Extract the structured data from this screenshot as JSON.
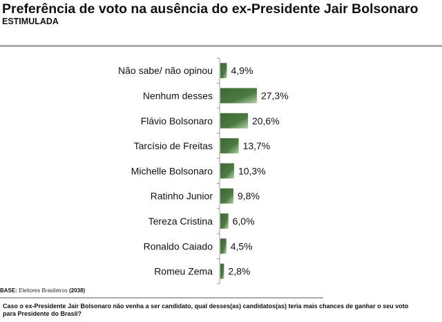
{
  "header": {
    "title": "Preferência de voto na ausência do ex-Presidente Jair Bolsonaro",
    "subtitle": "ESTIMULADA"
  },
  "footer": {
    "base_label": "BASE:",
    "base_text": "Eleitores Brasileiros",
    "base_n": "(2038)",
    "question": "Caso o ex-Presidente Jair Bolsonaro não venha a ser candidato, qual desses(as) candidatos(as) teria mais chances de ganhar o seu voto para Presidente do Brasil?"
  },
  "colors": {
    "bar_dark": "#3f6b35",
    "bar_light": "#a8c49c"
  },
  "chart_data": {
    "type": "bar",
    "orientation": "horizontal",
    "categories": [
      "Não sabe/ não opinou",
      "Nenhum desses",
      "Flávio Bolsonaro",
      "Tarcísio de Freitas",
      "Michelle Bolsonaro",
      "Ratinho Junior",
      "Tereza Cristina",
      "Ronaldo Caiado",
      "Romeu Zema"
    ],
    "values": [
      4.9,
      27.3,
      20.6,
      13.7,
      10.3,
      9.8,
      6.0,
      4.5,
      2.8
    ],
    "labels": [
      "4,9%",
      "27,3%",
      "20,6%",
      "13,7%",
      "10,3%",
      "9,8%",
      "6,0%",
      "4,5%",
      "2,8%"
    ],
    "unit": "%",
    "grid": false,
    "legend": "none"
  }
}
